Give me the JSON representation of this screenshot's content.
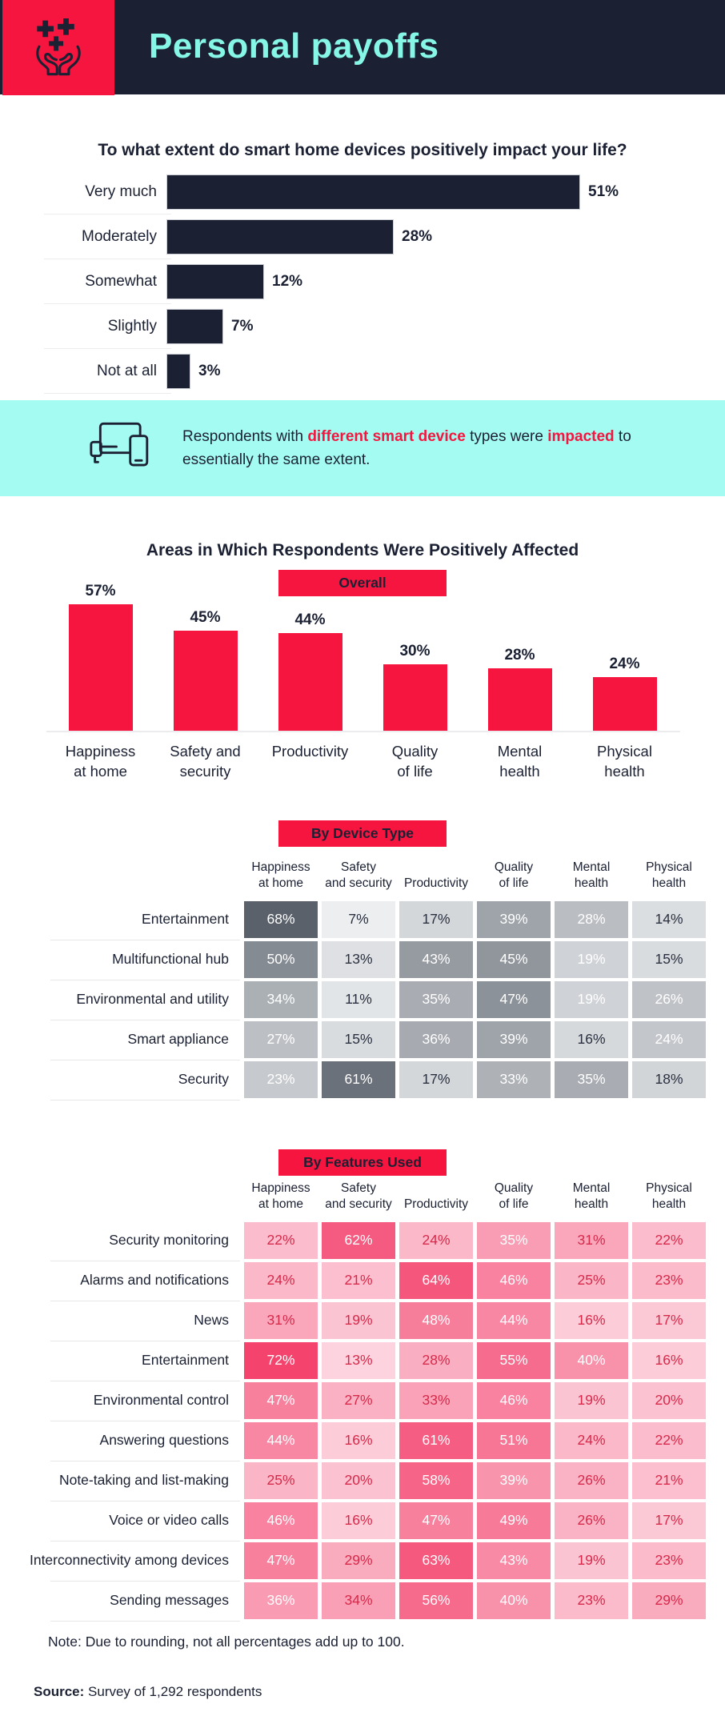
{
  "header": {
    "title": "Personal payoffs",
    "icon": "hands-sparkles-icon"
  },
  "colors": {
    "navy": "#1b2133",
    "red": "#f5153f",
    "teal_title": "#86f6e6",
    "callout_bg": "#a4fbf1",
    "gray_scale_low": "#eceef0",
    "gray_scale_high": "#5a616b",
    "pink_scale_low": "#fcd3de",
    "pink_scale_high": "#f4436d",
    "pink_text_red": "#d8294a",
    "cell_text_dark": "#2a3040",
    "cell_text_light": "#ffffff"
  },
  "callout": {
    "icon": "smart-devices-icon",
    "segments": [
      {
        "text": "Respondents with ",
        "emphasis": false
      },
      {
        "text": "different smart device",
        "emphasis": true
      },
      {
        "text": " types were ",
        "emphasis": false
      },
      {
        "text": "impacted",
        "emphasis": true
      },
      {
        "text": " to essentially the same extent.",
        "emphasis": false
      }
    ]
  },
  "chart_data": [
    {
      "id": "impact",
      "type": "bar",
      "orientation": "horizontal",
      "title": "To what extent do smart home devices positively impact your life?",
      "categories": [
        "Very much",
        "Moderately",
        "Somewhat",
        "Slightly",
        "Not at all"
      ],
      "values": [
        51,
        28,
        12,
        7,
        3
      ],
      "value_suffix": "%",
      "xlim": [
        0,
        55
      ],
      "grid": false,
      "bar_color_key": "navy"
    },
    {
      "id": "areas-overall",
      "type": "bar",
      "orientation": "vertical",
      "title": "Areas in Which Respondents Were Positively Affected",
      "badge": "Overall",
      "categories": [
        [
          "Happiness",
          "at home"
        ],
        [
          "Safety and",
          "security"
        ],
        [
          "Productivity"
        ],
        [
          "Quality",
          "of life"
        ],
        [
          "Mental",
          "health"
        ],
        [
          "Physical",
          "health"
        ]
      ],
      "values": [
        57,
        45,
        44,
        30,
        28,
        24
      ],
      "value_suffix": "%",
      "ylim": [
        0,
        60
      ],
      "grid": false,
      "bar_color_key": "red"
    },
    {
      "id": "by-device-type",
      "type": "heatmap",
      "badge": "By Device Type",
      "palette": "gray",
      "columns": [
        [
          "Happiness",
          "at home"
        ],
        [
          "Safety",
          "and security"
        ],
        [
          "Productivity"
        ],
        [
          "Quality",
          "of life"
        ],
        [
          "Mental",
          "health"
        ],
        [
          "Physical",
          "health"
        ]
      ],
      "rows": [
        "Entertainment",
        "Multifunctional hub",
        "Environmental and utility",
        "Smart appliance",
        "Security"
      ],
      "values": [
        [
          68,
          7,
          17,
          39,
          28,
          14
        ],
        [
          50,
          13,
          43,
          45,
          19,
          15
        ],
        [
          34,
          11,
          35,
          47,
          19,
          26
        ],
        [
          27,
          15,
          36,
          39,
          16,
          24
        ],
        [
          23,
          61,
          17,
          33,
          35,
          18
        ]
      ],
      "value_suffix": "%"
    },
    {
      "id": "by-features-used",
      "type": "heatmap",
      "badge": "By Features Used",
      "palette": "pink",
      "columns": [
        [
          "Happiness",
          "at home"
        ],
        [
          "Safety",
          "and security"
        ],
        [
          "Productivity"
        ],
        [
          "Quality",
          "of life"
        ],
        [
          "Mental",
          "health"
        ],
        [
          "Physical",
          "health"
        ]
      ],
      "rows": [
        "Security monitoring",
        "Alarms and notifications",
        "News",
        "Entertainment",
        "Environmental control",
        "Answering questions",
        "Note-taking and list-making",
        "Voice or video calls",
        "Interconnectivity among devices",
        "Sending messages"
      ],
      "values": [
        [
          22,
          62,
          24,
          35,
          31,
          22
        ],
        [
          24,
          21,
          64,
          46,
          25,
          23
        ],
        [
          31,
          19,
          48,
          44,
          16,
          17
        ],
        [
          72,
          13,
          28,
          55,
          40,
          16
        ],
        [
          47,
          27,
          33,
          46,
          19,
          20
        ],
        [
          44,
          16,
          61,
          51,
          24,
          22
        ],
        [
          25,
          20,
          58,
          39,
          26,
          21
        ],
        [
          46,
          16,
          47,
          49,
          26,
          17
        ],
        [
          47,
          29,
          63,
          43,
          19,
          23
        ],
        [
          36,
          34,
          56,
          40,
          23,
          29
        ]
      ],
      "value_suffix": "%"
    }
  ],
  "footer": {
    "note": "Note: Due to rounding, not all percentages add up to 100.",
    "source_label": "Source:",
    "source_text": " Survey of 1,292 respondents"
  }
}
